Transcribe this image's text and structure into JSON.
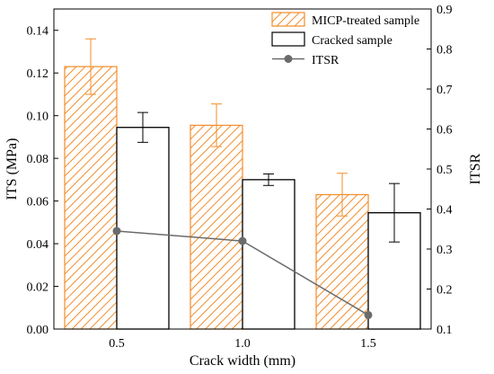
{
  "chart_data": {
    "type": "bar",
    "title": "",
    "xlabel": "Crack width (mm)",
    "ylabel": "ITS (MPa)",
    "y2label": "ITSR",
    "categories": [
      "0.5",
      "1.0",
      "1.5"
    ],
    "ylim": [
      0.0,
      0.15
    ],
    "yticks": [
      "0.00",
      "0.02",
      "0.04",
      "0.06",
      "0.08",
      "0.10",
      "0.12",
      "0.14"
    ],
    "y2lim": [
      0.1,
      0.9
    ],
    "y2ticks": [
      "0.1",
      "0.2",
      "0.3",
      "0.4",
      "0.5",
      "0.6",
      "0.7",
      "0.8",
      "0.9"
    ],
    "series": [
      {
        "name": "MICP-treated sample",
        "type": "bar",
        "color": "#f28c28",
        "pattern": "diagonal-hatch",
        "values": [
          0.123,
          0.0955,
          0.063
        ],
        "errors": [
          0.013,
          0.01,
          0.01
        ]
      },
      {
        "name": "Cracked sample",
        "type": "bar",
        "color": "#000000",
        "pattern": "none",
        "values": [
          0.0945,
          0.07,
          0.0545
        ],
        "errors": [
          0.007,
          0.0027,
          0.0137
        ]
      },
      {
        "name": "ITSR",
        "type": "line",
        "axis": "right",
        "color": "#6b6b6b",
        "marker": "circle",
        "values": [
          0.345,
          0.32,
          0.135
        ]
      }
    ],
    "legend_position": "top-right",
    "grid": false
  }
}
